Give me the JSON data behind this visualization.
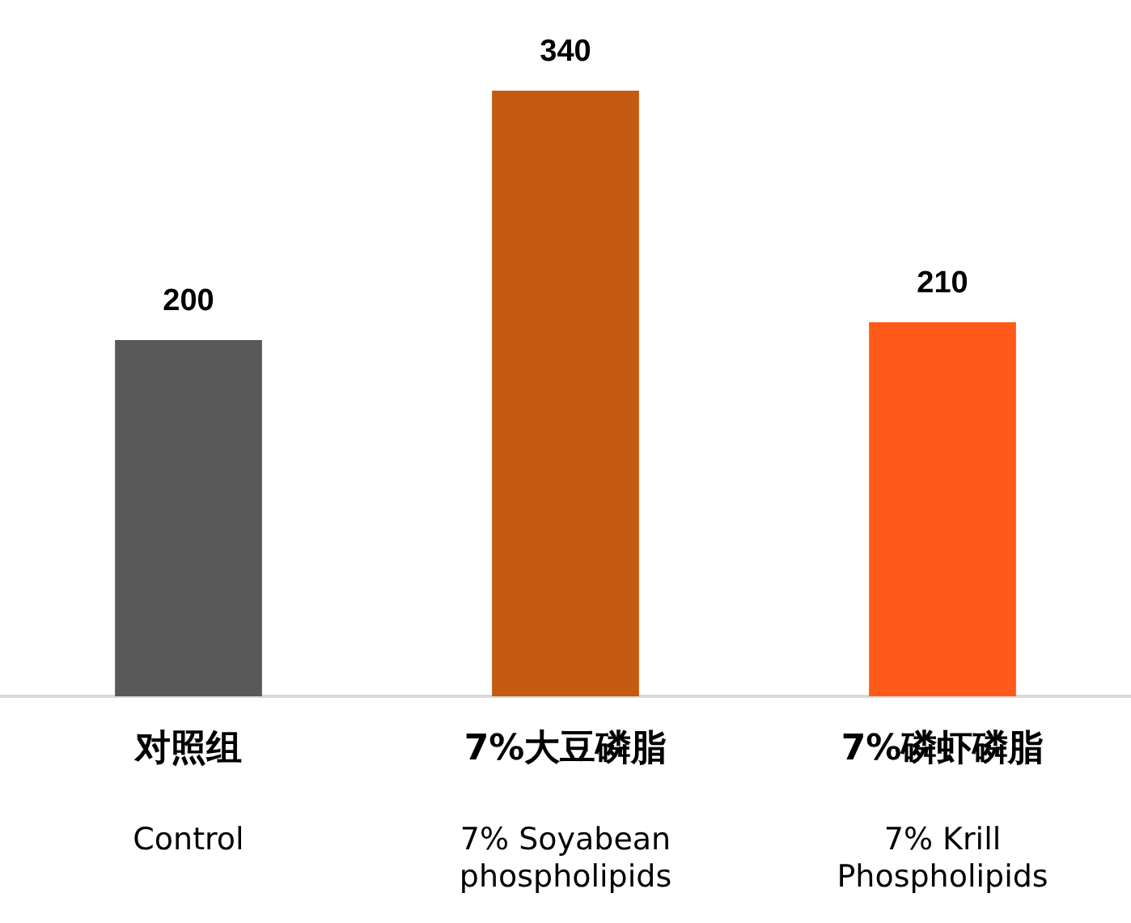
{
  "chart_data": {
    "type": "bar",
    "categories": [
      "对照组\nControl",
      "7%大豆磷脂\n7% Soyabean\nphospholipids",
      "7%磷虾磷脂\n7% Krill\nPhospholipids"
    ],
    "values": [
      200,
      340,
      210
    ],
    "colors": [
      "#595959",
      "#c55a11",
      "#ff5a1a"
    ],
    "data_labels": true,
    "grid": false,
    "legend": false,
    "tick_labels": "x"
  }
}
